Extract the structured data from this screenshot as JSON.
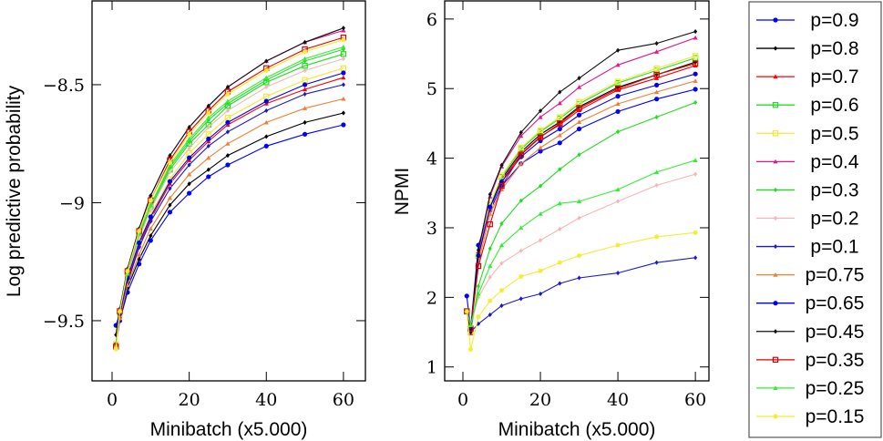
{
  "chart_data": [
    {
      "type": "line",
      "title": "",
      "xlabel": "Minibatch (x5.000)",
      "ylabel": "Log predictive probability",
      "xlim": [
        -5.2,
        65.7
      ],
      "ylim": [
        -9.755,
        -8.145
      ],
      "xticks": [
        0,
        20,
        40,
        60
      ],
      "xtick_labels": [
        "0",
        "20",
        "40",
        "60"
      ],
      "yticks": [
        -9.5,
        -9,
        -8.5
      ],
      "ytick_labels": [
        "−9.5",
        "−9",
        "−8.5"
      ],
      "grid": false,
      "x": [
        1,
        2,
        4,
        7,
        10,
        15,
        20,
        25,
        30,
        40,
        50,
        60
      ],
      "series": [
        {
          "name": "p=0.9",
          "values": [
            -9.6,
            -9.5,
            -9.38,
            -9.26,
            -9.16,
            -9.04,
            -8.96,
            -8.89,
            -8.84,
            -8.76,
            -8.71,
            -8.67
          ]
        },
        {
          "name": "p=0.8",
          "values": [
            -9.6,
            -9.49,
            -9.36,
            -9.24,
            -9.14,
            -9.01,
            -8.92,
            -8.86,
            -8.8,
            -8.72,
            -8.66,
            -8.62
          ]
        },
        {
          "name": "p=0.7",
          "values": [
            -9.6,
            -9.48,
            -9.33,
            -9.18,
            -9.07,
            -8.92,
            -8.82,
            -8.74,
            -8.67,
            -8.58,
            -8.52,
            -8.47
          ]
        },
        {
          "name": "p=0.6",
          "values": [
            -9.6,
            -9.46,
            -9.3,
            -9.14,
            -9.02,
            -8.86,
            -8.75,
            -8.67,
            -8.59,
            -8.49,
            -8.42,
            -8.37
          ]
        },
        {
          "name": "p=0.5",
          "values": [
            -9.6,
            -9.47,
            -9.32,
            -9.17,
            -9.05,
            -8.9,
            -8.79,
            -8.71,
            -8.64,
            -8.55,
            -8.48,
            -8.43
          ]
        },
        {
          "name": "p=0.4",
          "values": [
            -9.6,
            -9.45,
            -9.28,
            -9.11,
            -8.97,
            -8.8,
            -8.68,
            -8.59,
            -8.51,
            -8.4,
            -8.32,
            -8.27
          ]
        },
        {
          "name": "p=0.3",
          "values": [
            -9.6,
            -9.46,
            -9.3,
            -9.14,
            -9.01,
            -8.85,
            -8.74,
            -8.65,
            -8.58,
            -8.48,
            -8.4,
            -8.35
          ]
        },
        {
          "name": "p=0.2",
          "values": [
            -9.6,
            -9.47,
            -9.31,
            -9.15,
            -9.03,
            -8.87,
            -8.77,
            -8.68,
            -8.61,
            -8.51,
            -8.44,
            -8.39
          ]
        },
        {
          "name": "p=0.1",
          "values": [
            -9.6,
            -9.48,
            -9.34,
            -9.19,
            -9.08,
            -8.94,
            -8.84,
            -8.76,
            -8.7,
            -8.61,
            -8.54,
            -8.5
          ]
        },
        {
          "name": "p=0.75",
          "values": [
            -9.6,
            -9.49,
            -9.35,
            -9.22,
            -9.11,
            -8.98,
            -8.88,
            -8.81,
            -8.75,
            -8.66,
            -8.6,
            -8.56
          ]
        },
        {
          "name": "p=0.65",
          "values": [
            -9.52,
            -9.47,
            -9.32,
            -9.17,
            -9.06,
            -8.91,
            -8.81,
            -8.73,
            -8.66,
            -8.57,
            -8.5,
            -8.45
          ]
        },
        {
          "name": "p=0.45",
          "values": [
            -9.56,
            -9.45,
            -9.28,
            -9.11,
            -8.97,
            -8.8,
            -8.68,
            -8.59,
            -8.51,
            -8.4,
            -8.32,
            -8.26
          ]
        },
        {
          "name": "p=0.35",
          "values": [
            -9.61,
            -9.46,
            -9.29,
            -9.12,
            -8.99,
            -8.82,
            -8.7,
            -8.61,
            -8.53,
            -8.43,
            -8.35,
            -8.3
          ]
        },
        {
          "name": "p=0.25",
          "values": [
            -9.61,
            -9.46,
            -9.3,
            -9.13,
            -9.01,
            -8.84,
            -8.73,
            -8.64,
            -8.57,
            -8.47,
            -8.39,
            -8.34
          ]
        },
        {
          "name": "p=0.15",
          "values": [
            -9.62,
            -9.46,
            -9.29,
            -9.12,
            -8.99,
            -8.83,
            -8.71,
            -8.62,
            -8.54,
            -8.44,
            -8.36,
            -8.31
          ]
        }
      ]
    },
    {
      "type": "line",
      "title": "",
      "xlabel": "Minibatch (x5.000)",
      "ylabel": "NPMI",
      "xlim": [
        -4.7,
        63.5
      ],
      "ylim": [
        0.8,
        6.26
      ],
      "xticks": [
        0,
        20,
        40,
        60
      ],
      "xtick_labels": [
        "0",
        "20",
        "40",
        "60"
      ],
      "yticks": [
        1,
        2,
        3,
        4,
        5,
        6
      ],
      "ytick_labels": [
        "1",
        "2",
        "3",
        "4",
        "5",
        "6"
      ],
      "grid": false,
      "x": [
        1,
        2,
        4,
        7,
        10,
        15,
        20,
        25,
        30,
        40,
        50,
        60
      ],
      "series": [
        {
          "name": "p=0.9",
          "values": [
            2.02,
            1.55,
            2.75,
            3.25,
            3.6,
            3.92,
            4.1,
            4.22,
            4.42,
            4.67,
            4.85,
            4.99
          ]
        },
        {
          "name": "p=0.8",
          "values": [
            1.8,
            1.52,
            2.59,
            3.3,
            3.7,
            4.09,
            4.34,
            4.52,
            4.74,
            5.02,
            5.2,
            5.38
          ]
        },
        {
          "name": "p=0.7",
          "values": [
            1.8,
            1.5,
            2.58,
            3.28,
            3.67,
            4.06,
            4.31,
            4.48,
            4.69,
            4.98,
            5.15,
            5.33
          ]
        },
        {
          "name": "p=0.6",
          "values": [
            1.8,
            1.5,
            2.6,
            3.33,
            3.73,
            4.13,
            4.38,
            4.57,
            4.78,
            5.08,
            5.26,
            5.44
          ]
        },
        {
          "name": "p=0.5",
          "values": [
            1.8,
            1.5,
            2.61,
            3.34,
            3.75,
            4.15,
            4.4,
            4.59,
            4.81,
            5.1,
            5.29,
            5.47
          ]
        },
        {
          "name": "p=0.4",
          "values": [
            1.8,
            1.48,
            2.66,
            3.45,
            3.88,
            4.32,
            4.59,
            4.79,
            5.02,
            5.34,
            5.53,
            5.73
          ]
        },
        {
          "name": "p=0.3",
          "values": [
            1.8,
            1.5,
            2.16,
            2.7,
            3.06,
            3.39,
            3.6,
            3.84,
            4.05,
            4.38,
            4.59,
            4.8
          ]
        },
        {
          "name": "p=0.2",
          "values": [
            1.8,
            1.6,
            2.0,
            2.29,
            2.49,
            2.67,
            2.82,
            2.98,
            3.14,
            3.38,
            3.61,
            3.77
          ]
        },
        {
          "name": "p=0.1",
          "values": [
            1.8,
            1.5,
            1.62,
            1.75,
            1.88,
            1.98,
            2.05,
            2.2,
            2.28,
            2.35,
            2.5,
            2.57
          ]
        },
        {
          "name": "p=0.75",
          "values": [
            1.8,
            1.5,
            2.5,
            3.2,
            3.55,
            3.92,
            4.15,
            4.33,
            4.52,
            4.78,
            4.95,
            5.11
          ]
        },
        {
          "name": "p=0.65",
          "values": [
            1.8,
            1.55,
            2.6,
            3.3,
            3.66,
            4.02,
            4.25,
            4.42,
            4.62,
            4.89,
            5.05,
            5.21
          ]
        },
        {
          "name": "p=0.45",
          "values": [
            1.8,
            1.5,
            2.68,
            3.48,
            3.9,
            4.37,
            4.68,
            4.95,
            5.15,
            5.55,
            5.65,
            5.82
          ]
        },
        {
          "name": "p=0.35",
          "values": [
            1.8,
            1.55,
            2.45,
            3.05,
            3.6,
            4.05,
            4.3,
            4.5,
            4.72,
            5.0,
            5.2,
            5.36
          ]
        },
        {
          "name": "p=0.25",
          "values": [
            1.8,
            1.6,
            2.05,
            2.45,
            2.75,
            3.0,
            3.2,
            3.35,
            3.38,
            3.55,
            3.8,
            3.97
          ]
        },
        {
          "name": "p=0.15",
          "values": [
            1.8,
            1.25,
            1.72,
            1.95,
            2.1,
            2.3,
            2.38,
            2.5,
            2.6,
            2.75,
            2.87,
            2.93
          ]
        }
      ]
    }
  ],
  "legend": {
    "placement": "right",
    "entries": [
      {
        "label": "p=0.9",
        "color": "#0000ff",
        "marker": "circle"
      },
      {
        "label": "p=0.8",
        "color": "#000000",
        "marker": "diamond"
      },
      {
        "label": "p=0.7",
        "color": "#ff0000",
        "marker": "triangle"
      },
      {
        "label": "p=0.6",
        "color": "#22dd22",
        "marker": "square"
      },
      {
        "label": "p=0.5",
        "color": "#f2e83a",
        "marker": "square"
      },
      {
        "label": "p=0.4",
        "color": "#e0188a",
        "marker": "triangle"
      },
      {
        "label": "p=0.3",
        "color": "#22dd22",
        "marker": "diamond"
      },
      {
        "label": "p=0.2",
        "color": "#f4b6b6",
        "marker": "diamond"
      },
      {
        "label": "p=0.1",
        "color": "#1a1acc",
        "marker": "diamond"
      },
      {
        "label": "p=0.75",
        "color": "#f08030",
        "marker": "triangle"
      },
      {
        "label": "p=0.65",
        "color": "#0000ee",
        "marker": "circle"
      },
      {
        "label": "p=0.45",
        "color": "#111111",
        "marker": "diamond"
      },
      {
        "label": "p=0.35",
        "color": "#dd0000",
        "marker": "square"
      },
      {
        "label": "p=0.25",
        "color": "#33ee33",
        "marker": "triangle"
      },
      {
        "label": "p=0.15",
        "color": "#f5ec30",
        "marker": "star"
      }
    ]
  }
}
